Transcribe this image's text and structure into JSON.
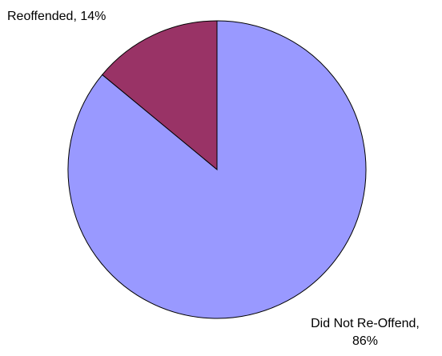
{
  "chart_data": {
    "type": "pie",
    "title": "",
    "slices": [
      {
        "label": "Reoffended",
        "value": 14,
        "display_label": "Reoffended, 14%",
        "color": "#993366"
      },
      {
        "label": "Did Not Re-Offend",
        "value": 86,
        "display_label_lines": [
          "Did Not Re-Offend,",
          "86%"
        ],
        "color": "#9999FF"
      }
    ],
    "start_angle_deg": 0,
    "direction": "counterclockwise",
    "stroke_color": "#000000",
    "legend": "none"
  }
}
